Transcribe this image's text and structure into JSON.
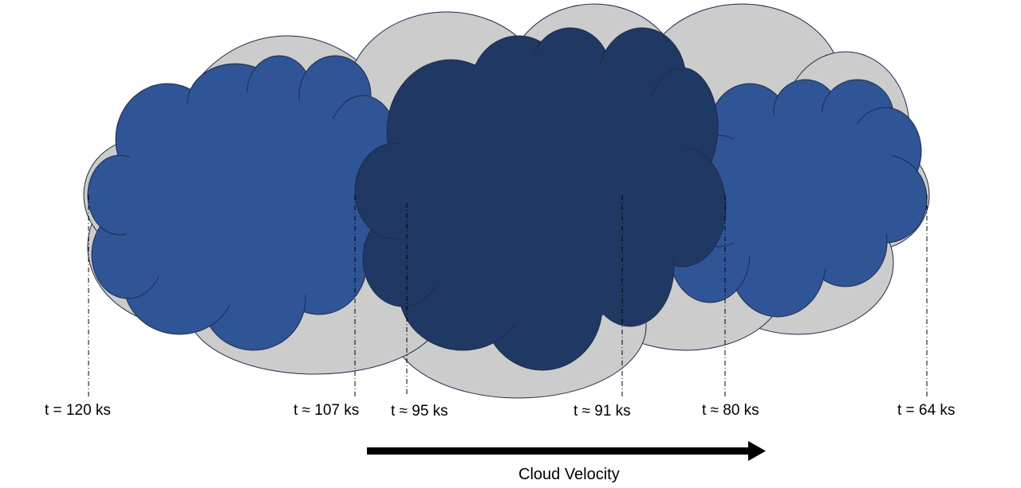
{
  "diagram": {
    "velocity_label": "Cloud Velocity",
    "time_markers": [
      {
        "id": "t120",
        "label": "t = 120 ks"
      },
      {
        "id": "t107",
        "label": "t ≈ 107 ks"
      },
      {
        "id": "t95",
        "label": "t ≈ 95 ks"
      },
      {
        "id": "t91",
        "label": "t ≈ 91 ks"
      },
      {
        "id": "t80",
        "label": "t ≈ 80 ks"
      },
      {
        "id": "t64",
        "label": "t = 64 ks"
      }
    ],
    "colors": {
      "outer_cloud": "#cccccc",
      "outer_stroke": "#1f2a4a",
      "mid_cloud": "#2f5597",
      "core_cloud": "#203864",
      "arrow": "#000000",
      "guide_line": "#000000"
    }
  }
}
